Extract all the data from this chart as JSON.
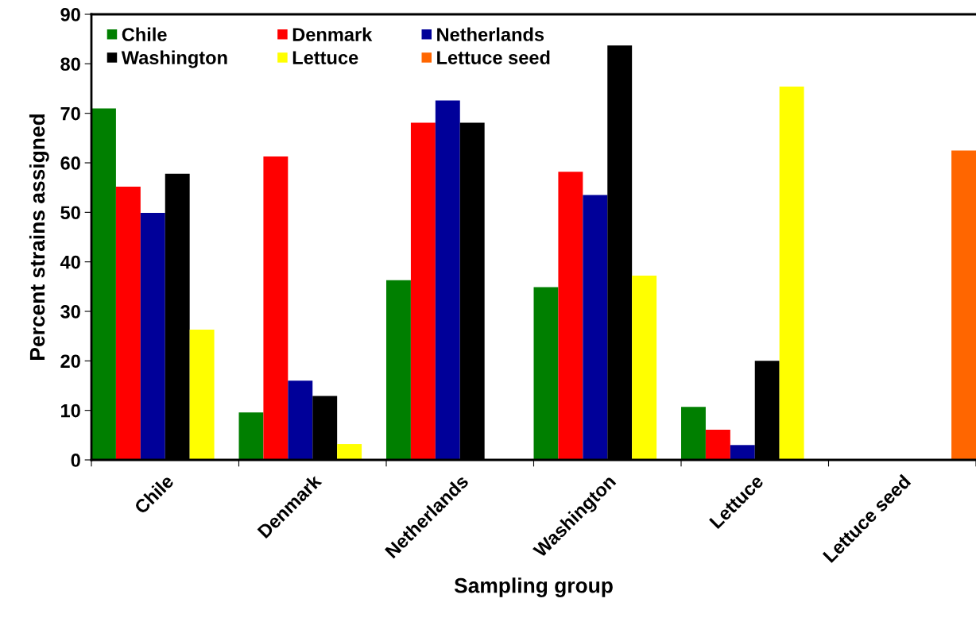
{
  "chart_data": {
    "type": "bar",
    "xlabel": "Sampling group",
    "ylabel": "Percent strains assigned",
    "categories": [
      "Chile",
      "Denmark",
      "Netherlands",
      "Washington",
      "Lettuce",
      "Lettuce seed"
    ],
    "series": [
      {
        "name": "Chile",
        "color": "#007f00",
        "values": [
          71,
          9.6,
          36.3,
          34.9,
          10.7,
          0
        ]
      },
      {
        "name": "Denmark",
        "color": "#ff0000",
        "values": [
          55.2,
          61.3,
          68.1,
          58.2,
          6.1,
          0
        ]
      },
      {
        "name": "Netherlands",
        "color": "#000099",
        "values": [
          49.9,
          16.0,
          72.6,
          53.5,
          3.0,
          0
        ]
      },
      {
        "name": "Washington",
        "color": "#000000",
        "values": [
          57.8,
          12.9,
          68.1,
          83.7,
          20.0,
          0
        ]
      },
      {
        "name": "Lettuce",
        "color": "#ffff00",
        "values": [
          26.3,
          3.2,
          0,
          37.2,
          75.4,
          0
        ]
      },
      {
        "name": "Lettuce seed",
        "color": "#ff6600",
        "values": [
          0,
          0,
          0,
          0,
          0,
          62.5
        ]
      }
    ],
    "ylim": [
      0,
      90
    ],
    "yticks": [
      0,
      10,
      20,
      30,
      40,
      50,
      60,
      70,
      80,
      90
    ],
    "grid": false,
    "legend": "top left"
  }
}
